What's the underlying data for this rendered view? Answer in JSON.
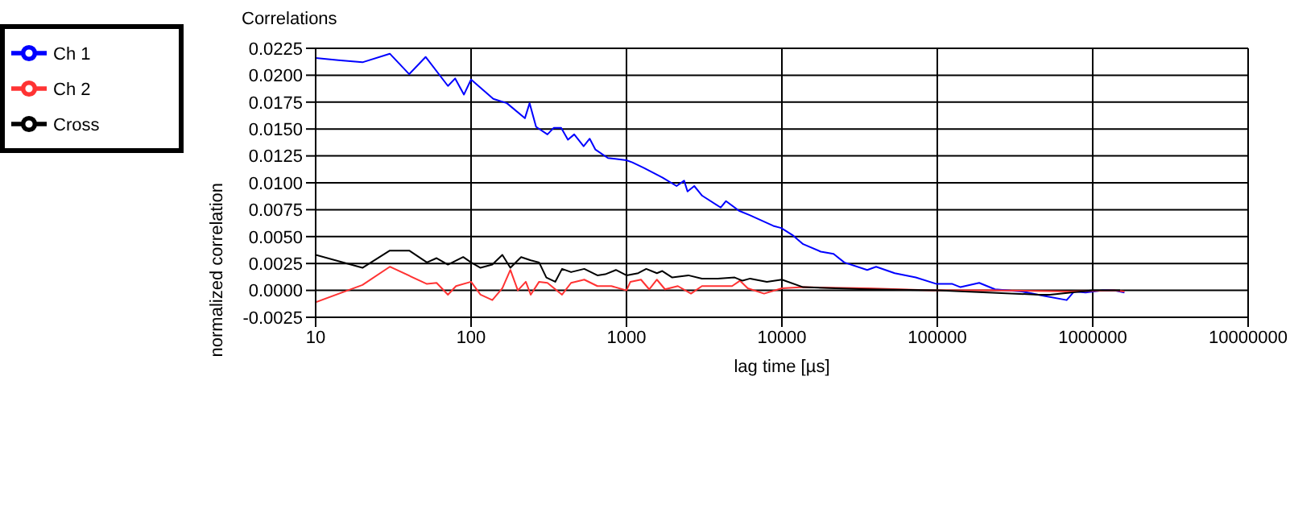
{
  "chart_data": {
    "type": "line",
    "title": "Correlations",
    "xlabel": "lag time [µs]",
    "ylabel": "normalized correlation",
    "log": "x",
    "xlim": [
      10,
      10000000
    ],
    "xticks": [
      10,
      100,
      1000,
      10000,
      100000,
      1000000,
      10000000
    ],
    "ylim": [
      -0.0025,
      0.0225
    ],
    "yticks": [
      {
        "value": -0.0025,
        "label": "-0.0025"
      },
      {
        "value": 0,
        "label": "0.0000"
      },
      {
        "value": 0.0025,
        "label": "0.0025"
      },
      {
        "value": 0.005,
        "label": "0.0050"
      },
      {
        "value": 0.0075,
        "label": "0.0075"
      },
      {
        "value": 0.01,
        "label": "0.0100"
      },
      {
        "value": 0.0125,
        "label": "0.0125"
      },
      {
        "value": 0.015,
        "label": "0.0150"
      },
      {
        "value": 0.0175,
        "label": "0.0175"
      },
      {
        "value": 0.02,
        "label": "0.0200"
      },
      {
        "value": 0.0225,
        "label": "0.0225"
      }
    ],
    "grid": true,
    "legend": "top left",
    "marker": "none",
    "line_style": "solid",
    "series": [
      {
        "name": "Ch 1",
        "color": "#0000ff",
        "x": [
          10,
          14,
          20,
          30,
          40,
          51,
          71,
          79,
          90,
          100,
          139,
          170,
          222,
          238,
          262,
          310,
          340,
          380,
          420,
          461,
          530,
          580,
          630,
          760,
          1000,
          1090,
          1290,
          1700,
          2100,
          2350,
          2470,
          2730,
          3070,
          4040,
          4370,
          5300,
          6200,
          8800,
          9900,
          11800,
          13700,
          17800,
          21500,
          25200,
          35400,
          40400,
          53200,
          72700,
          99000,
          125000,
          141000,
          186000,
          235000,
          350000,
          480000,
          680000,
          760000,
          900000,
          1160000,
          1370000,
          1600000
        ],
        "values": [
          0.0216,
          0.0214,
          0.0212,
          0.022,
          0.0201,
          0.0217,
          0.019,
          0.0197,
          0.0182,
          0.0196,
          0.0178,
          0.0174,
          0.016,
          0.0174,
          0.0152,
          0.0145,
          0.0151,
          0.0151,
          0.014,
          0.0145,
          0.0134,
          0.0141,
          0.0131,
          0.0123,
          0.0121,
          0.0119,
          0.0114,
          0.0105,
          0.0097,
          0.0102,
          0.0092,
          0.0097,
          0.0088,
          0.0077,
          0.0083,
          0.0074,
          0.007,
          0.006,
          0.0058,
          0.0051,
          0.0043,
          0.0036,
          0.0034,
          0.0026,
          0.0019,
          0.0022,
          0.0016,
          0.0012,
          0.0006,
          0.0006,
          0.0003,
          0.0007,
          0.0001,
          -0.0001,
          -0.0005,
          -0.0009,
          -0.0001,
          -0.0002,
          0,
          0,
          -0.0002
        ]
      },
      {
        "name": "Ch 2",
        "color": "#ff3333",
        "x": [
          10,
          20,
          30,
          52,
          60,
          71,
          80,
          100,
          115,
          137,
          159,
          179,
          200,
          225,
          242,
          274,
          310,
          385,
          440,
          535,
          650,
          800,
          1000,
          1060,
          1240,
          1400,
          1570,
          1770,
          2140,
          2600,
          3060,
          3870,
          4780,
          5370,
          6030,
          7680,
          10000,
          13700,
          36000,
          91000,
          235000,
          720000,
          1370000,
          1600000
        ],
        "values": [
          -0.0011,
          0.0005,
          0.0022,
          0.0006,
          0.0007,
          -0.0004,
          0.0004,
          0.0008,
          -0.0004,
          -0.0009,
          0.0002,
          0.0019,
          0,
          0.0008,
          -0.0004,
          0.0008,
          0.0007,
          -0.0004,
          0.0007,
          0.001,
          0.0004,
          0.0004,
          0,
          0.0008,
          0.001,
          0.0001,
          0.001,
          0.0001,
          0.0004,
          -0.0003,
          0.0004,
          0.0004,
          0.0004,
          0.0009,
          0.0002,
          -0.0003,
          0.0002,
          0.0003,
          0.0002,
          0,
          0,
          -0.0001,
          0,
          -0.0001
        ]
      },
      {
        "name": "Cross",
        "color": "#000000",
        "x": [
          10,
          20,
          30,
          40,
          52,
          60,
          71,
          89,
          100,
          115,
          137,
          159,
          179,
          210,
          242,
          274,
          305,
          348,
          385,
          440,
          535,
          650,
          730,
          855,
          1000,
          1190,
          1340,
          1570,
          1700,
          1970,
          2500,
          3060,
          3870,
          4970,
          5580,
          6250,
          8000,
          10000,
          13700,
          22300,
          36000,
          100000,
          450000,
          530000,
          1000000,
          1500000
        ],
        "values": [
          0.0033,
          0.0021,
          0.0037,
          0.0037,
          0.0026,
          0.003,
          0.0024,
          0.0031,
          0.0026,
          0.0021,
          0.0024,
          0.0033,
          0.0021,
          0.0031,
          0.0028,
          0.0026,
          0.0012,
          0.0008,
          0.002,
          0.0017,
          0.002,
          0.0014,
          0.0015,
          0.0019,
          0.0014,
          0.0016,
          0.002,
          0.0016,
          0.0018,
          0.0012,
          0.0014,
          0.0011,
          0.0011,
          0.0012,
          0.0009,
          0.0011,
          0.0008,
          0.001,
          0.0003,
          0.0002,
          0.0001,
          0,
          -0.0004,
          -0.0004,
          0,
          0
        ]
      }
    ]
  }
}
